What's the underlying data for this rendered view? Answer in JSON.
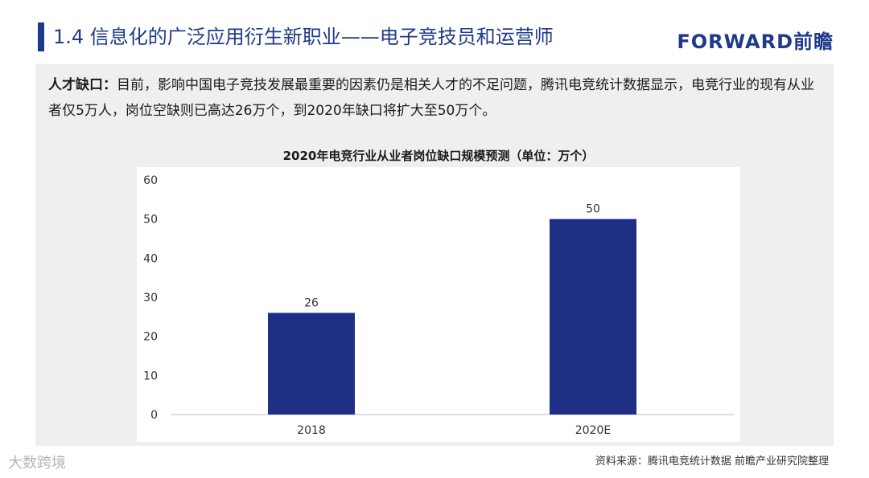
{
  "header": {
    "title": "1.4 信息化的广泛应用衍生新职业——电子竞技员和运营师",
    "logo": "FORWARD前瞻"
  },
  "intro": {
    "lead": "人才缺口：",
    "text": "目前，影响中国电子竞技发展最重要的因素仍是相关人才的不足问题，腾讯电竞统计数据显示，电竞行业的现有从业者仅5万人，岗位空缺则已高达26万个，到2020年缺口将扩大至50万个。"
  },
  "chart_data": {
    "type": "bar",
    "title": "2020年电竞行业从业者岗位缺口规模预测（单位：万个）",
    "categories": [
      "2018",
      "2020E"
    ],
    "values": [
      26,
      50
    ],
    "ylim": [
      0,
      60
    ],
    "yticks": [
      0,
      10,
      20,
      30,
      40,
      50,
      60
    ],
    "bar_color": "#1f2f86",
    "grid": false,
    "legend": "none"
  },
  "footer": {
    "source": "资料来源：腾讯电竞统计数据 前瞻产业研究院整理",
    "watermark": "大数跨境"
  }
}
